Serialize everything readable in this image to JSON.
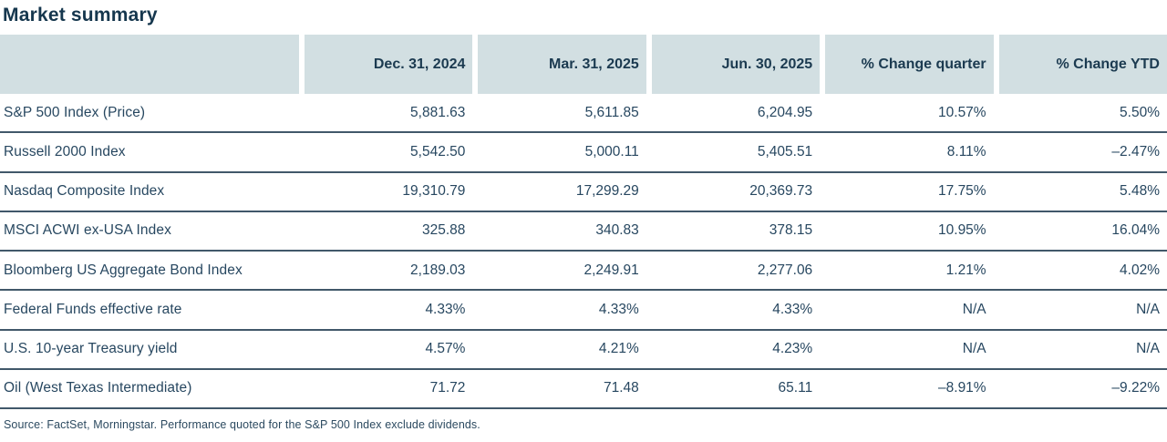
{
  "title": "Market summary",
  "source_note": "Source: FactSet, Morningstar. Performance quoted for the S&P 500 Index exclude dividends.",
  "colors": {
    "header_background": "#d2dfe2",
    "header_text": "#1b3a50",
    "body_text": "#274760",
    "row_border": "#41586a",
    "title_text": "#16374e"
  },
  "chart_data": {
    "type": "table",
    "title": "Market summary",
    "columns": [
      "",
      "Dec. 31, 2024",
      "Mar. 31, 2025",
      "Jun. 30, 2025",
      "% Change quarter",
      "% Change YTD"
    ],
    "rows": [
      [
        "S&P 500 Index (Price)",
        "5,881.63",
        "5,611.85",
        "6,204.95",
        "10.57%",
        "5.50%"
      ],
      [
        "Russell 2000 Index",
        "5,542.50",
        "5,000.11",
        "5,405.51",
        "8.11%",
        "–2.47%"
      ],
      [
        "Nasdaq Composite Index",
        "19,310.79",
        "17,299.29",
        "20,369.73",
        "17.75%",
        "5.48%"
      ],
      [
        "MSCI ACWI ex-USA Index",
        "325.88",
        "340.83",
        "378.15",
        "10.95%",
        "16.04%"
      ],
      [
        "Bloomberg US Aggregate Bond Index",
        "2,189.03",
        "2,249.91",
        "2,277.06",
        "1.21%",
        "4.02%"
      ],
      [
        "Federal Funds effective rate",
        "4.33%",
        "4.33%",
        "4.33%",
        "N/A",
        "N/A"
      ],
      [
        "U.S. 10-year Treasury yield",
        "4.57%",
        "4.21%",
        "4.23%",
        "N/A",
        "N/A"
      ],
      [
        "Oil (West Texas Intermediate)",
        "71.72",
        "71.48",
        "65.11",
        "–8.91%",
        "–9.22%"
      ]
    ]
  }
}
